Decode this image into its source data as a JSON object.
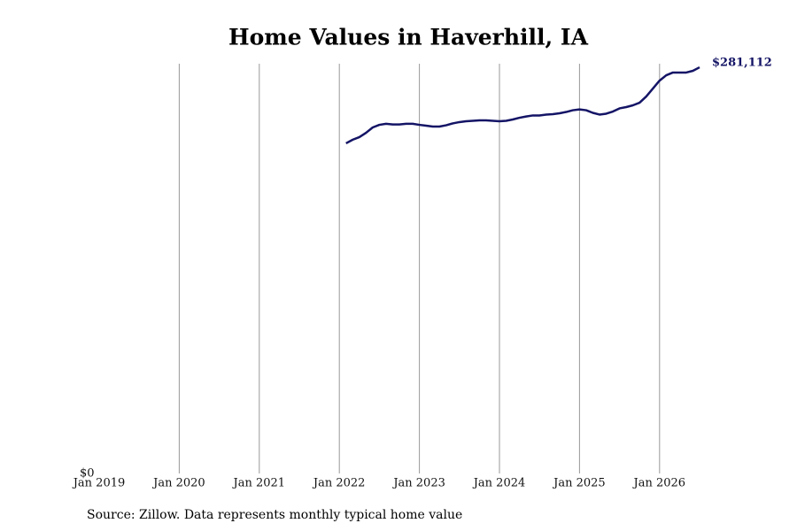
{
  "chart_data": {
    "type": "line",
    "title": "Home Values in Haverhill, IA",
    "source": "Source: Zillow. Data represents monthly typical home value",
    "color": "#141466",
    "grid": true,
    "xlim": [
      "2019-01",
      "2026-07"
    ],
    "xticks": [
      {
        "value": "2019-01",
        "label": "Jan 2019"
      },
      {
        "value": "2020-01",
        "label": "Jan 2020"
      },
      {
        "value": "2021-01",
        "label": "Jan 2021"
      },
      {
        "value": "2022-01",
        "label": "Jan 2022"
      },
      {
        "value": "2023-01",
        "label": "Jan 2023"
      },
      {
        "value": "2024-01",
        "label": "Jan 2024"
      },
      {
        "value": "2025-01",
        "label": "Jan 2025"
      },
      {
        "value": "2026-01",
        "label": "Jan 2026"
      }
    ],
    "ylim": [
      0,
      283600
    ],
    "yticks": [
      {
        "value": 0,
        "label": "$0"
      }
    ],
    "x": [
      "2022-02",
      "2022-03",
      "2022-04",
      "2022-05",
      "2022-06",
      "2022-07",
      "2022-08",
      "2022-09",
      "2022-10",
      "2022-11",
      "2022-12",
      "2023-01",
      "2023-02",
      "2023-03",
      "2023-04",
      "2023-05",
      "2023-06",
      "2023-07",
      "2023-08",
      "2023-09",
      "2023-10",
      "2023-11",
      "2023-12",
      "2024-01",
      "2024-02",
      "2024-03",
      "2024-04",
      "2024-05",
      "2024-06",
      "2024-07",
      "2024-08",
      "2024-09",
      "2024-10",
      "2024-11",
      "2024-12",
      "2025-01",
      "2025-02",
      "2025-03",
      "2025-04",
      "2025-05",
      "2025-06",
      "2025-07",
      "2025-08",
      "2025-09",
      "2025-10",
      "2025-11",
      "2025-12",
      "2026-01",
      "2026-02",
      "2026-03",
      "2026-04",
      "2026-05",
      "2026-06",
      "2026-07"
    ],
    "values": [
      228500,
      231000,
      232800,
      235800,
      239500,
      241300,
      242000,
      241600,
      241600,
      242000,
      242000,
      241300,
      240700,
      240100,
      240100,
      241000,
      242300,
      243200,
      243800,
      244100,
      244400,
      244400,
      244100,
      243800,
      244100,
      245000,
      246200,
      247100,
      247800,
      247800,
      248400,
      248700,
      249300,
      250200,
      251400,
      252000,
      251400,
      249600,
      248400,
      249000,
      250500,
      252700,
      253600,
      254800,
      256600,
      260900,
      266400,
      271900,
      275600,
      277500,
      277500,
      277500,
      278700,
      281112
    ],
    "value_labels": [
      null,
      null,
      null,
      null,
      null,
      null,
      null,
      null,
      null,
      null,
      null,
      null,
      null,
      null,
      null,
      null,
      null,
      null,
      null,
      null,
      null,
      null,
      null,
      null,
      null,
      null,
      null,
      null,
      null,
      null,
      null,
      null,
      null,
      null,
      null,
      null,
      null,
      null,
      null,
      null,
      null,
      null,
      null,
      null,
      null,
      null,
      null,
      null,
      null,
      null,
      null,
      null,
      null,
      "$281,112"
    ]
  }
}
